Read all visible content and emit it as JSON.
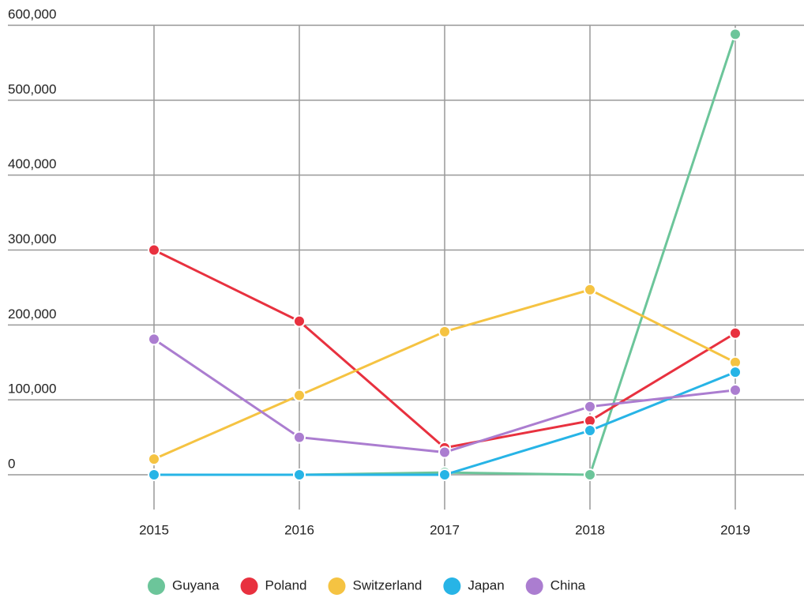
{
  "chart_data": {
    "type": "line",
    "categories": [
      "2015",
      "2016",
      "2017",
      "2018",
      "2019"
    ],
    "series": [
      {
        "name": "Guyana",
        "color": "#6cc59a",
        "values": [
          0,
          0,
          3000,
          0,
          588000
        ]
      },
      {
        "name": "Poland",
        "color": "#e8313f",
        "values": [
          300000,
          205000,
          36000,
          72000,
          189000
        ]
      },
      {
        "name": "Switzerland",
        "color": "#f5c342",
        "values": [
          21000,
          106000,
          191000,
          247000,
          150000
        ]
      },
      {
        "name": "Japan",
        "color": "#27b4e6",
        "values": [
          0,
          0,
          0,
          59000,
          137000
        ]
      },
      {
        "name": "China",
        "color": "#ab7dd0",
        "values": [
          181000,
          50000,
          30000,
          91000,
          113000
        ]
      }
    ],
    "ylim": [
      0,
      600000
    ],
    "yticks": [
      0,
      {
        "value": 100000,
        "label": "100,000"
      },
      {
        "value": 200000,
        "label": "200,000"
      },
      {
        "value": 300000,
        "label": "300,000"
      },
      {
        "value": 400000,
        "label": "400,000"
      },
      {
        "value": 500000,
        "label": "500,000"
      },
      {
        "value": 600000,
        "label": "600,000"
      }
    ],
    "grid": true,
    "legend": "bottom"
  }
}
